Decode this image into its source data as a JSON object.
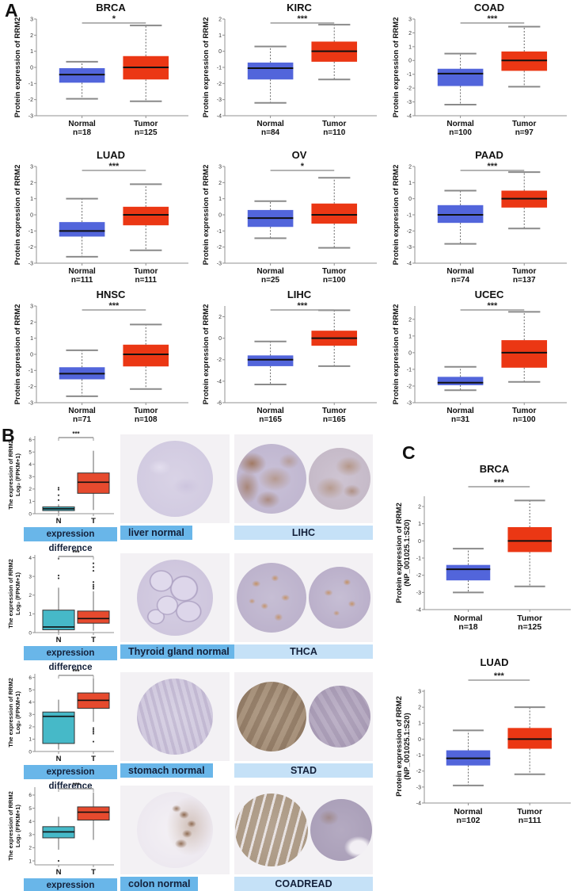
{
  "panels": {
    "a": "A",
    "b": "B",
    "c": "C"
  },
  "styles": {
    "normal_box": "#5265DB",
    "tumor_box": "#EB3714",
    "b_normal_box": "#46B9C8",
    "b_tumor_box": "#E64A2E",
    "label_bg_medium": "#69B6E9",
    "label_bg_light": "#C5E1F7",
    "image_bg": "#F3F1F4"
  },
  "chart_data": {
    "panel_a": [
      {
        "type": "box",
        "title": "BRCA",
        "ylabel": [
          "Protein expression of RRM2"
        ],
        "ylim": [
          -3,
          3
        ],
        "yticks": [
          -3,
          -2,
          -1,
          0,
          1,
          2,
          3
        ],
        "sig": "*",
        "groups": [
          {
            "label": "Normal",
            "n": "n=18",
            "color": "#5265DB",
            "low": -1.95,
            "q1": -0.95,
            "median": -0.45,
            "q3": -0.05,
            "high": 0.35,
            "outliers": []
          },
          {
            "label": "Tumor",
            "n": "n=125",
            "color": "#EB3714",
            "low": -2.1,
            "q1": -0.75,
            "median": 0.0,
            "q3": 0.7,
            "high": 2.6,
            "outliers": []
          }
        ]
      },
      {
        "type": "box",
        "title": "KIRC",
        "ylabel": [
          "Protein expression of RRM2"
        ],
        "ylim": [
          -4,
          2
        ],
        "yticks": [
          -4,
          -3,
          -2,
          -1,
          0,
          1,
          2
        ],
        "sig": "***",
        "groups": [
          {
            "label": "Normal",
            "n": "n=84",
            "color": "#5265DB",
            "low": -3.2,
            "q1": -1.75,
            "median": -1.05,
            "q3": -0.7,
            "high": 0.3,
            "outliers": []
          },
          {
            "label": "Tumor",
            "n": "n=110",
            "color": "#EB3714",
            "low": -1.75,
            "q1": -0.65,
            "median": 0.0,
            "q3": 0.6,
            "high": 1.65,
            "outliers": []
          }
        ]
      },
      {
        "type": "box",
        "title": "COAD",
        "ylabel": [
          "Protein expression of RRM2"
        ],
        "ylim": [
          -4,
          3
        ],
        "yticks": [
          -4,
          -3,
          -2,
          -1,
          0,
          1,
          2,
          3
        ],
        "sig": "***",
        "groups": [
          {
            "label": "Normal",
            "n": "n=100",
            "color": "#5265DB",
            "low": -3.2,
            "q1": -1.85,
            "median": -0.95,
            "q3": -0.6,
            "high": 0.5,
            "outliers": []
          },
          {
            "label": "Tumor",
            "n": "n=97",
            "color": "#EB3714",
            "low": -1.9,
            "q1": -0.75,
            "median": 0.0,
            "q3": 0.65,
            "high": 2.45,
            "outliers": []
          }
        ]
      },
      {
        "type": "box",
        "title": "LUAD",
        "ylabel": [
          "Protein expression of RRM2"
        ],
        "ylim": [
          -3,
          3
        ],
        "yticks": [
          -3,
          -2,
          -1,
          0,
          1,
          2,
          3
        ],
        "sig": "***",
        "groups": [
          {
            "label": "Normal",
            "n": "n=111",
            "color": "#5265DB",
            "low": -2.6,
            "q1": -1.35,
            "median": -1.0,
            "q3": -0.45,
            "high": 1.0,
            "outliers": []
          },
          {
            "label": "Tumor",
            "n": "n=111",
            "color": "#EB3714",
            "low": -2.2,
            "q1": -0.65,
            "median": 0.0,
            "q3": 0.5,
            "high": 1.9,
            "outliers": []
          }
        ]
      },
      {
        "type": "box",
        "title": "OV",
        "ylabel": [
          "Protein expression of RRM2"
        ],
        "ylim": [
          -3,
          3
        ],
        "yticks": [
          -3,
          -2,
          -1,
          0,
          1,
          2,
          3
        ],
        "sig": "*",
        "groups": [
          {
            "label": "Normal",
            "n": "n=25",
            "color": "#5265DB",
            "low": -1.45,
            "q1": -0.75,
            "median": -0.2,
            "q3": 0.3,
            "high": 0.85,
            "outliers": []
          },
          {
            "label": "Tumor",
            "n": "n=100",
            "color": "#EB3714",
            "low": -2.05,
            "q1": -0.55,
            "median": 0.0,
            "q3": 0.7,
            "high": 2.3,
            "outliers": []
          }
        ]
      },
      {
        "type": "box",
        "title": "PAAD",
        "ylabel": [
          "Protein expression of RRM2"
        ],
        "ylim": [
          -4,
          2
        ],
        "yticks": [
          -4,
          -3,
          -2,
          -1,
          0,
          1,
          2
        ],
        "sig": "***",
        "groups": [
          {
            "label": "Normal",
            "n": "n=74",
            "color": "#5265DB",
            "low": -2.8,
            "q1": -1.5,
            "median": -1.0,
            "q3": -0.4,
            "high": 0.5,
            "outliers": []
          },
          {
            "label": "Tumor",
            "n": "n=137",
            "color": "#EB3714",
            "low": -1.85,
            "q1": -0.55,
            "median": 0.0,
            "q3": 0.5,
            "high": 1.65,
            "outliers": []
          }
        ]
      },
      {
        "type": "box",
        "title": "HNSC",
        "ylabel": [
          "Protein expression of RRM2"
        ],
        "ylim": [
          -3,
          3
        ],
        "yticks": [
          -3,
          -2,
          -1,
          0,
          1,
          2,
          3
        ],
        "sig": "***",
        "groups": [
          {
            "label": "Normal",
            "n": "n=71",
            "color": "#5265DB",
            "low": -2.6,
            "q1": -1.55,
            "median": -1.2,
            "q3": -0.8,
            "high": 0.25,
            "outliers": []
          },
          {
            "label": "Tumor",
            "n": "n=108",
            "color": "#EB3714",
            "low": -2.15,
            "q1": -0.75,
            "median": 0.0,
            "q3": 0.6,
            "high": 1.85,
            "outliers": []
          }
        ]
      },
      {
        "type": "box",
        "title": "LIHC",
        "ylabel": [
          "Protein expression of RRM2"
        ],
        "ylim": [
          -6,
          3
        ],
        "yticks": [
          -6,
          -4,
          -2,
          0,
          2
        ],
        "sig": "***",
        "groups": [
          {
            "label": "Normal",
            "n": "n=165",
            "color": "#5265DB",
            "low": -4.3,
            "q1": -2.6,
            "median": -2.0,
            "q3": -1.6,
            "high": -0.3,
            "outliers": []
          },
          {
            "label": "Tumor",
            "n": "n=165",
            "color": "#EB3714",
            "low": -2.6,
            "q1": -0.7,
            "median": 0.0,
            "q3": 0.7,
            "high": 2.6,
            "outliers": []
          }
        ]
      },
      {
        "type": "box",
        "title": "UCEC",
        "ylabel": [
          "Protein expression of RRM2"
        ],
        "ylim": [
          -3,
          2.8
        ],
        "yticks": [
          -3,
          -2,
          -1,
          0,
          1,
          2
        ],
        "sig": "***",
        "groups": [
          {
            "label": "Normal",
            "n": "n=31",
            "color": "#5265DB",
            "low": -2.25,
            "q1": -1.95,
            "median": -1.8,
            "q3": -1.45,
            "high": -0.85,
            "outliers": []
          },
          {
            "label": "Tumor",
            "n": "n=100",
            "color": "#EB3714",
            "low": -1.75,
            "q1": -0.9,
            "median": 0.0,
            "q3": 0.75,
            "high": 2.45,
            "outliers": []
          }
        ]
      }
    ],
    "panel_b": [
      {
        "type": "box",
        "title": "",
        "ylabel": [
          "The expression of RRM2",
          "Log₂ (FPKM+1)"
        ],
        "ylim": [
          0,
          6.3
        ],
        "yticks": [
          0,
          1,
          2,
          3,
          4,
          5,
          6
        ],
        "sig": "***",
        "groups": [
          {
            "label": "N",
            "color": "#46B9C8",
            "low": 0.05,
            "q1": 0.25,
            "median": 0.4,
            "q3": 0.55,
            "high": 0.75,
            "outliers": [
              1.1,
              1.5,
              1.95,
              2.1
            ]
          },
          {
            "label": "T",
            "color": "#E64A2E",
            "low": 0.3,
            "q1": 1.65,
            "median": 2.55,
            "q3": 3.3,
            "high": 5.1,
            "outliers": []
          }
        ]
      },
      {
        "type": "box",
        "title": "",
        "ylabel": [
          "The expression of RRM2",
          "Log₂ (FPKM+1)"
        ],
        "ylim": [
          0,
          4.15
        ],
        "yticks": [
          0,
          1,
          2,
          3,
          4
        ],
        "sig": "***",
        "groups": [
          {
            "label": "N",
            "color": "#46B9C8",
            "low": 0.02,
            "q1": 0.15,
            "median": 0.3,
            "q3": 1.2,
            "high": 2.4,
            "outliers": [
              2.9,
              3.05,
              3.95
            ]
          },
          {
            "label": "T",
            "color": "#E64A2E",
            "low": 0.1,
            "q1": 0.5,
            "median": 0.75,
            "q3": 1.15,
            "high": 2.2,
            "outliers": [
              2.35,
              2.45,
              2.55,
              2.7,
              3.3,
              3.5,
              3.7
            ]
          }
        ]
      },
      {
        "type": "box",
        "title": "",
        "ylabel": [
          "The expression of RRM2",
          "Log₂ (FPKM+1)"
        ],
        "ylim": [
          0,
          6.3
        ],
        "yticks": [
          0,
          1,
          2,
          3,
          4,
          5,
          6
        ],
        "sig": "***",
        "groups": [
          {
            "label": "N",
            "color": "#46B9C8",
            "low": 0.15,
            "q1": 0.65,
            "median": 2.85,
            "q3": 3.2,
            "high": 4.2,
            "outliers": []
          },
          {
            "label": "T",
            "color": "#E64A2E",
            "low": 2.4,
            "q1": 3.5,
            "median": 4.15,
            "q3": 4.75,
            "high": 6.0,
            "outliers": [
              1.9,
              1.75,
              1.6,
              1.45,
              0.8
            ]
          }
        ]
      },
      {
        "type": "box",
        "title": "",
        "ylabel": [
          "The expression of RRM2",
          "Log₂ (FPKM+1)"
        ],
        "ylim": [
          0.7,
          6.6
        ],
        "yticks": [
          1,
          2,
          3,
          4,
          5,
          6
        ],
        "sig": "***",
        "groups": [
          {
            "label": "N",
            "color": "#46B9C8",
            "low": 1.85,
            "q1": 2.75,
            "median": 3.2,
            "q3": 3.6,
            "high": 4.35,
            "outliers": [
              1.0
            ]
          },
          {
            "label": "T",
            "color": "#E64A2E",
            "low": 2.6,
            "q1": 4.1,
            "median": 4.7,
            "q3": 5.1,
            "high": 6.2,
            "outliers": []
          }
        ]
      }
    ],
    "panel_c": [
      {
        "type": "box",
        "title": "BRCA",
        "ylabel": [
          "Protein expression of RRM2",
          "(NP_001025.1:S20)"
        ],
        "ylim": [
          -4,
          2.6
        ],
        "yticks": [
          -4,
          -3,
          -2,
          -1,
          0,
          1,
          2
        ],
        "sig": "***",
        "groups": [
          {
            "label": "Normal",
            "n": "n=18",
            "color": "#5265DB",
            "low": -3.0,
            "q1": -2.3,
            "median": -1.65,
            "q3": -1.4,
            "high": -0.45,
            "outliers": []
          },
          {
            "label": "Tumor",
            "n": "n=125",
            "color": "#EB3714",
            "low": -2.65,
            "q1": -0.65,
            "median": 0.0,
            "q3": 0.8,
            "high": 2.35,
            "outliers": []
          }
        ]
      },
      {
        "type": "box",
        "title": "LUAD",
        "ylabel": [
          "Protein expression of RRM2",
          "(NP_001025.1:S20)"
        ],
        "ylim": [
          -4,
          3.1
        ],
        "yticks": [
          -4,
          -3,
          -2,
          -1,
          0,
          1,
          2,
          3
        ],
        "sig": "***",
        "groups": [
          {
            "label": "Normal",
            "n": "n=102",
            "color": "#5265DB",
            "low": -2.9,
            "q1": -1.65,
            "median": -1.2,
            "q3": -0.7,
            "high": 0.55,
            "outliers": []
          },
          {
            "label": "Tumor",
            "n": "n=111",
            "color": "#EB3714",
            "low": -2.2,
            "q1": -0.6,
            "median": 0.0,
            "q3": 0.7,
            "high": 2.0,
            "outliers": []
          }
        ]
      }
    ]
  },
  "panel_b_rows": [
    {
      "bottom_label": "expression difference",
      "normal_label": "liver normal",
      "tumor_label": "LIHC"
    },
    {
      "bottom_label": "expression difference",
      "normal_label": "Thyroid gland normal",
      "tumor_label": "THCA"
    },
    {
      "bottom_label": "expression difference",
      "normal_label": "stomach normal",
      "tumor_label": "STAD"
    },
    {
      "bottom_label": "expression difference",
      "normal_label": "colon normal",
      "tumor_label": "COADREAD"
    }
  ]
}
